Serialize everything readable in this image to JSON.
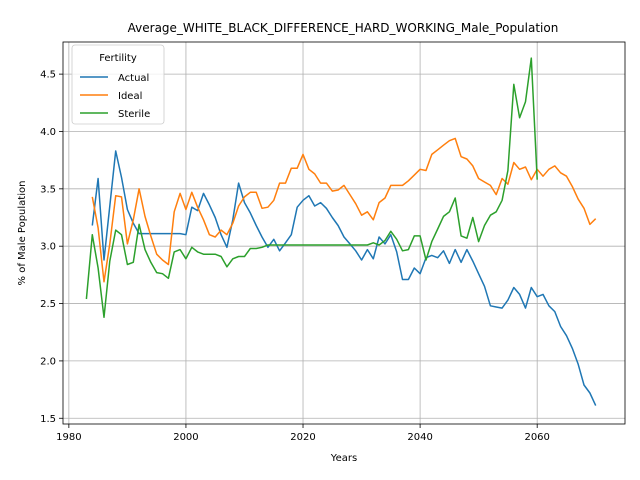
{
  "chart_data": {
    "type": "line",
    "title": "Average_WHITE_BLACK_DIFFERENCE_HARD_WORKING_Male_Population",
    "xlabel": "Years",
    "ylabel": "% of Male Population",
    "xlim": [
      1979,
      2075
    ],
    "ylim": [
      1.45,
      4.78
    ],
    "x_ticks": [
      1980,
      2000,
      2020,
      2040,
      2060
    ],
    "y_ticks": [
      1.5,
      2.0,
      2.5,
      3.0,
      3.5,
      4.0,
      4.5
    ],
    "grid": true,
    "legend": {
      "title": "Fertility",
      "placement": "top-left"
    },
    "series": [
      {
        "name": "Actual",
        "color": "#1f77b4",
        "x": [
          1984,
          1985,
          1986,
          1987,
          1988,
          1989,
          1990,
          1991,
          1992,
          1993,
          1994,
          1995,
          1996,
          1997,
          1998,
          1999,
          2000,
          2001,
          2002,
          2003,
          2004,
          2005,
          2006,
          2007,
          2008,
          2009,
          2010,
          2011,
          2012,
          2013,
          2014,
          2015,
          2016,
          2017,
          2018,
          2019,
          2020,
          2021,
          2022,
          2023,
          2024,
          2025,
          2026,
          2027,
          2028,
          2029,
          2030,
          2031,
          2032,
          2033,
          2034,
          2035,
          2036,
          2037,
          2038,
          2039,
          2040,
          2041,
          2042,
          2043,
          2044,
          2045,
          2046,
          2047,
          2048,
          2049,
          2050,
          2051,
          2052,
          2053,
          2054,
          2055,
          2056,
          2057,
          2058,
          2059,
          2060,
          2061,
          2062,
          2063,
          2064,
          2065,
          2066,
          2067,
          2068,
          2069,
          2070
        ],
        "values": [
          3.18,
          3.59,
          2.88,
          3.35,
          3.83,
          3.6,
          3.32,
          3.2,
          3.11,
          3.11,
          3.11,
          3.11,
          3.11,
          3.11,
          3.11,
          3.11,
          3.1,
          3.34,
          3.31,
          3.46,
          3.36,
          3.25,
          3.1,
          2.99,
          3.23,
          3.55,
          3.38,
          3.29,
          3.18,
          3.08,
          2.99,
          3.06,
          2.96,
          3.03,
          3.1,
          3.34,
          3.4,
          3.44,
          3.35,
          3.38,
          3.33,
          3.25,
          3.18,
          3.08,
          3.02,
          2.96,
          2.88,
          2.97,
          2.89,
          3.08,
          3.02,
          3.1,
          2.95,
          2.71,
          2.71,
          2.81,
          2.76,
          2.9,
          2.92,
          2.9,
          2.96,
          2.85,
          2.97,
          2.86,
          2.97,
          2.87,
          2.76,
          2.65,
          2.48,
          2.47,
          2.46,
          2.53,
          2.64,
          2.58,
          2.46,
          2.64,
          2.56,
          2.58,
          2.48,
          2.43,
          2.3,
          2.22,
          2.11,
          1.97,
          1.79,
          1.72,
          1.61
        ]
      },
      {
        "name": "Ideal",
        "color": "#ff7f0e",
        "x": [
          1984,
          1985,
          1986,
          1987,
          1988,
          1989,
          1990,
          1991,
          1992,
          1993,
          1994,
          1995,
          1996,
          1997,
          1998,
          1999,
          2000,
          2001,
          2002,
          2003,
          2004,
          2005,
          2006,
          2007,
          2008,
          2009,
          2010,
          2011,
          2012,
          2013,
          2014,
          2015,
          2016,
          2017,
          2018,
          2019,
          2020,
          2021,
          2022,
          2023,
          2024,
          2025,
          2026,
          2027,
          2028,
          2029,
          2030,
          2031,
          2032,
          2033,
          2034,
          2035,
          2036,
          2037,
          2038,
          2039,
          2040,
          2041,
          2042,
          2043,
          2044,
          2045,
          2046,
          2047,
          2048,
          2049,
          2050,
          2051,
          2052,
          2053,
          2054,
          2055,
          2056,
          2057,
          2058,
          2059,
          2060,
          2061,
          2062,
          2063,
          2064,
          2065,
          2066,
          2067,
          2068,
          2069,
          2070
        ],
        "values": [
          3.43,
          3.16,
          2.69,
          3.02,
          3.44,
          3.43,
          3.02,
          3.23,
          3.5,
          3.26,
          3.09,
          2.93,
          2.88,
          2.84,
          3.3,
          3.46,
          3.32,
          3.47,
          3.34,
          3.23,
          3.1,
          3.08,
          3.14,
          3.1,
          3.2,
          3.35,
          3.43,
          3.47,
          3.47,
          3.33,
          3.34,
          3.4,
          3.55,
          3.55,
          3.68,
          3.68,
          3.8,
          3.67,
          3.63,
          3.55,
          3.55,
          3.48,
          3.49,
          3.53,
          3.45,
          3.37,
          3.27,
          3.3,
          3.23,
          3.38,
          3.42,
          3.53,
          3.53,
          3.53,
          3.57,
          3.62,
          3.67,
          3.66,
          3.8,
          3.84,
          3.88,
          3.92,
          3.94,
          3.78,
          3.76,
          3.7,
          3.59,
          3.56,
          3.53,
          3.45,
          3.59,
          3.54,
          3.73,
          3.67,
          3.69,
          3.58,
          3.67,
          3.61,
          3.67,
          3.7,
          3.64,
          3.61,
          3.52,
          3.41,
          3.33,
          3.19,
          3.24
        ]
      },
      {
        "name": "Sterile",
        "color": "#2ca02c",
        "x": [
          1983,
          1984,
          1985,
          1986,
          1987,
          1988,
          1989,
          1990,
          1991,
          1992,
          1993,
          1994,
          1995,
          1996,
          1997,
          1998,
          1999,
          2000,
          2001,
          2002,
          2003,
          2004,
          2005,
          2006,
          2007,
          2008,
          2009,
          2010,
          2011,
          2012,
          2013,
          2014,
          2015,
          2016,
          2017,
          2018,
          2019,
          2020,
          2021,
          2022,
          2023,
          2024,
          2025,
          2026,
          2027,
          2028,
          2029,
          2030,
          2031,
          2032,
          2033,
          2034,
          2035,
          2036,
          2037,
          2038,
          2039,
          2040,
          2041,
          2042,
          2043,
          2044,
          2045,
          2046,
          2047,
          2048,
          2049,
          2050,
          2051,
          2052,
          2053,
          2054,
          2055,
          2056,
          2057,
          2058,
          2059,
          2060
        ],
        "values": [
          2.54,
          3.1,
          2.81,
          2.38,
          2.87,
          3.14,
          3.1,
          2.84,
          2.86,
          3.19,
          2.97,
          2.86,
          2.77,
          2.76,
          2.72,
          2.95,
          2.97,
          2.89,
          2.99,
          2.95,
          2.93,
          2.93,
          2.93,
          2.91,
          2.82,
          2.89,
          2.91,
          2.91,
          2.98,
          2.98,
          2.99,
          3.01,
          3.01,
          3.01,
          3.01,
          3.01,
          3.01,
          3.01,
          3.01,
          3.01,
          3.01,
          3.01,
          3.01,
          3.01,
          3.01,
          3.01,
          3.01,
          3.01,
          3.01,
          3.03,
          3.01,
          3.05,
          3.13,
          3.06,
          2.96,
          2.97,
          3.09,
          3.09,
          2.88,
          3.04,
          3.15,
          3.26,
          3.3,
          3.42,
          3.09,
          3.07,
          3.25,
          3.04,
          3.18,
          3.27,
          3.3,
          3.4,
          3.66,
          4.41,
          4.12,
          4.26,
          4.64,
          3.58
        ]
      }
    ]
  }
}
